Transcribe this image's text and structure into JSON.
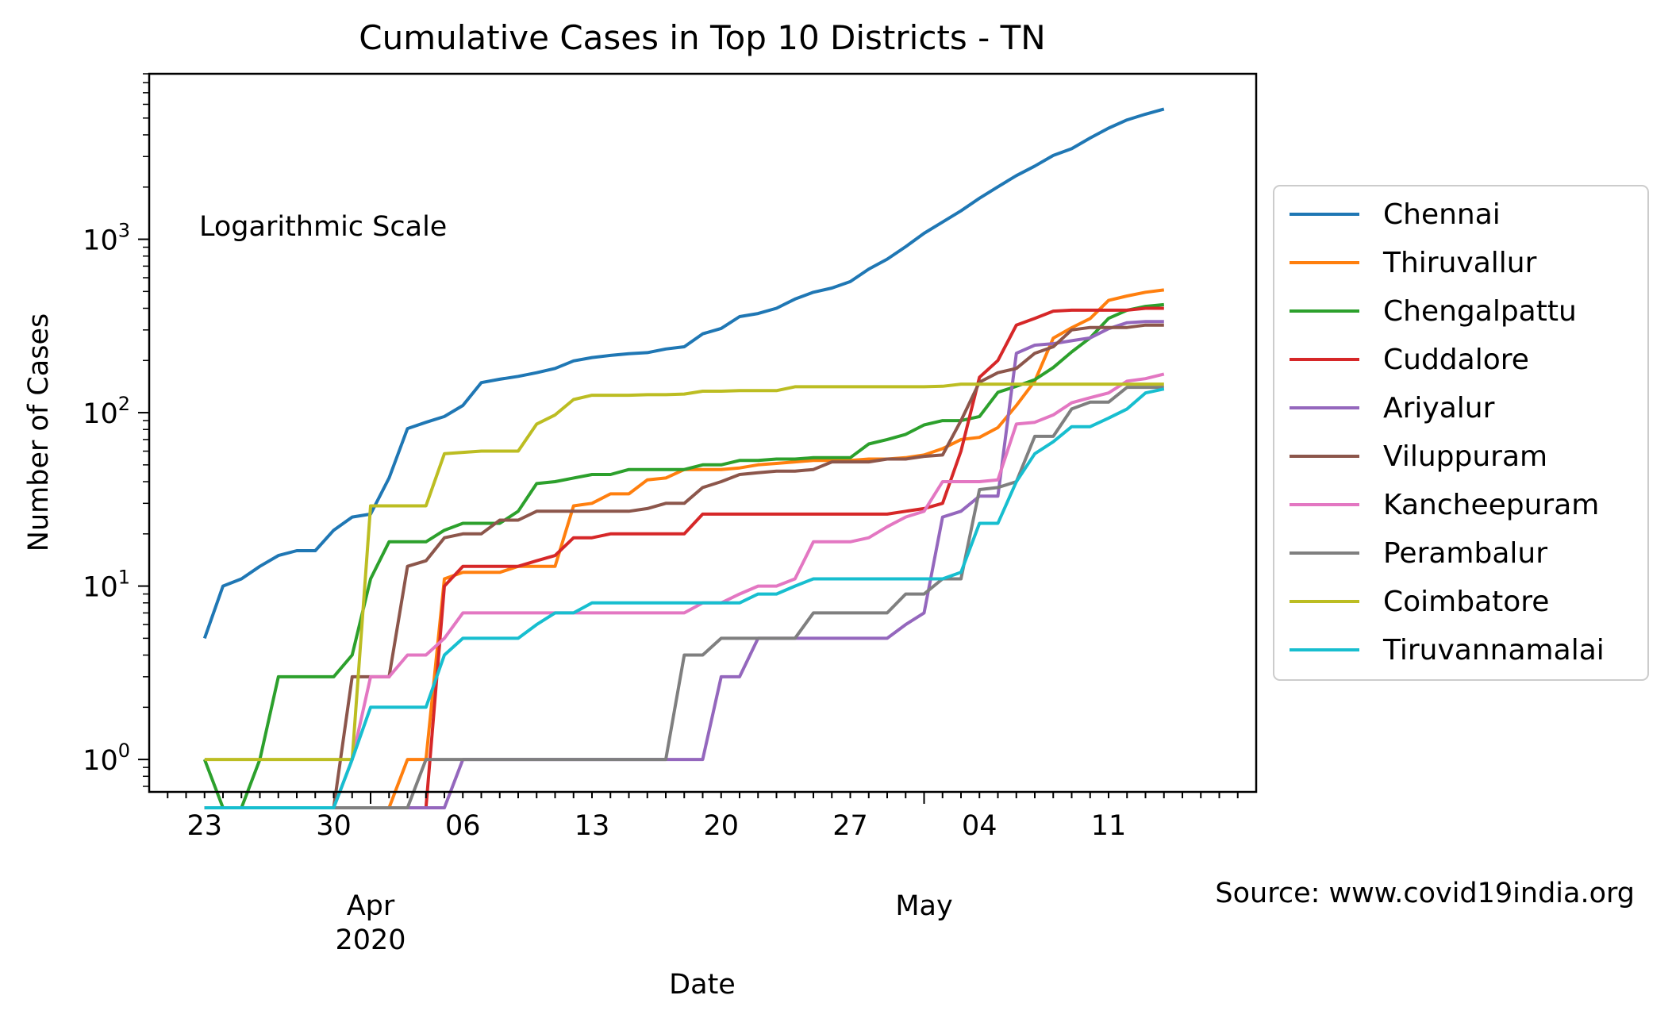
{
  "chart_data": {
    "type": "line",
    "title": "Cumulative Cases in Top 10 Districts - TN",
    "xlabel": "Date",
    "ylabel": "Number of Cases",
    "annotation": "Logarithmic Scale",
    "source": "Source: www.covid19india.org",
    "yscale": "log",
    "ylim": [
      0.65,
      9000
    ],
    "xlim": [
      "2020-03-20",
      "2020-05-19"
    ],
    "grid": false,
    "legend_position": "outside-right",
    "x_tick_labels": [
      {
        "date": "2020-03-23",
        "label": "23"
      },
      {
        "date": "2020-03-30",
        "label": "30"
      },
      {
        "date": "2020-04-06",
        "label": "06"
      },
      {
        "date": "2020-04-13",
        "label": "13"
      },
      {
        "date": "2020-04-20",
        "label": "20"
      },
      {
        "date": "2020-04-27",
        "label": "27"
      },
      {
        "date": "2020-05-04",
        "label": "04"
      },
      {
        "date": "2020-05-11",
        "label": "11"
      }
    ],
    "month_labels": [
      {
        "date": "2020-04-01",
        "label": "Apr",
        "sub": "2020"
      },
      {
        "date": "2020-05-01",
        "label": "May",
        "sub": ""
      }
    ],
    "y_ticks": [
      {
        "value": 1,
        "base": "10",
        "exp": "0"
      },
      {
        "value": 10,
        "base": "10",
        "exp": "1"
      },
      {
        "value": 100,
        "base": "10",
        "exp": "2"
      },
      {
        "value": 1000,
        "base": "10",
        "exp": "3"
      }
    ],
    "x_start": "2020-03-23",
    "series": [
      {
        "name": "Chennai",
        "color": "#1f77b4",
        "values": [
          5,
          10,
          11,
          13,
          15,
          16,
          16,
          21,
          25,
          26,
          42,
          81,
          88,
          95,
          110,
          149,
          156,
          162,
          170,
          180,
          199,
          208,
          214,
          219,
          222,
          233,
          240,
          285,
          306,
          358,
          373,
          400,
          452,
          495,
          523,
          570,
          673,
          768,
          906,
          1082,
          1257,
          1458,
          1724,
          2008,
          2328,
          2644,
          3043,
          3330,
          3839,
          4371,
          4882,
          5262,
          5637
        ]
      },
      {
        "name": "Thiruvallur",
        "color": "#ff7f0e",
        "values": [
          0,
          0,
          0,
          0,
          0,
          0,
          0,
          0,
          0,
          0,
          0,
          1,
          1,
          11,
          12,
          12,
          12,
          13,
          13,
          13,
          29,
          30,
          34,
          34,
          41,
          42,
          47,
          47,
          47,
          48,
          50,
          51,
          52,
          53,
          53,
          53,
          54,
          54,
          55,
          57,
          62,
          70,
          72,
          82,
          110,
          152,
          269,
          309,
          349,
          444,
          471,
          495,
          510
        ]
      },
      {
        "name": "Chengalpattu",
        "color": "#2ca02c",
        "values": [
          1,
          0,
          0,
          1,
          3,
          3,
          3,
          3,
          4,
          11,
          18,
          18,
          18,
          21,
          23,
          23,
          23,
          27,
          39,
          40,
          42,
          44,
          44,
          47,
          47,
          47,
          47,
          50,
          50,
          53,
          53,
          54,
          54,
          55,
          55,
          55,
          66,
          70,
          75,
          85,
          90,
          90,
          95,
          131,
          142,
          155,
          182,
          224,
          270,
          350,
          390,
          410,
          420
        ]
      },
      {
        "name": "Cuddalore",
        "color": "#d62728",
        "values": [
          0,
          0,
          0,
          0,
          0,
          0,
          0,
          0,
          0,
          0,
          0,
          0,
          0,
          10,
          13,
          13,
          13,
          13,
          14,
          15,
          19,
          19,
          20,
          20,
          20,
          20,
          20,
          26,
          26,
          26,
          26,
          26,
          26,
          26,
          26,
          26,
          26,
          26,
          27,
          28,
          30,
          60,
          160,
          200,
          320,
          350,
          385,
          390,
          390,
          390,
          390,
          400,
          400
        ]
      },
      {
        "name": "Ariyalur",
        "color": "#9467bd",
        "values": [
          0,
          0,
          0,
          0,
          0,
          0,
          0,
          0,
          0,
          0,
          0,
          0,
          0,
          0,
          1,
          1,
          1,
          1,
          1,
          1,
          1,
          1,
          1,
          1,
          1,
          1,
          1,
          1,
          3,
          3,
          5,
          5,
          5,
          5,
          5,
          5,
          5,
          5,
          6,
          7,
          25,
          27,
          33,
          33,
          220,
          245,
          250,
          260,
          270,
          305,
          330,
          335,
          335
        ]
      },
      {
        "name": "Viluppuram",
        "color": "#8c564b",
        "values": [
          0,
          0,
          0,
          0,
          0,
          0,
          0,
          0,
          3,
          3,
          3,
          13,
          14,
          19,
          20,
          20,
          24,
          24,
          27,
          27,
          27,
          27,
          27,
          27,
          28,
          30,
          30,
          37,
          40,
          44,
          45,
          46,
          46,
          47,
          52,
          52,
          52,
          54,
          54,
          56,
          57,
          90,
          150,
          170,
          180,
          220,
          240,
          300,
          310,
          310,
          310,
          320,
          320
        ]
      },
      {
        "name": "Kancheepuram",
        "color": "#e377c2",
        "values": [
          0,
          0,
          0,
          0,
          0,
          0,
          0,
          0,
          1,
          3,
          3,
          4,
          4,
          5,
          7,
          7,
          7,
          7,
          7,
          7,
          7,
          7,
          7,
          7,
          7,
          7,
          7,
          8,
          8,
          9,
          10,
          10,
          11,
          18,
          18,
          18,
          19,
          22,
          25,
          27,
          40,
          40,
          40,
          41,
          86,
          88,
          97,
          114,
          122,
          130,
          152,
          157,
          167
        ]
      },
      {
        "name": "Perambalur",
        "color": "#7f7f7f",
        "values": [
          0,
          0,
          0,
          0,
          0,
          0,
          0,
          0,
          0,
          0,
          0,
          0,
          1,
          1,
          1,
          1,
          1,
          1,
          1,
          1,
          1,
          1,
          1,
          1,
          1,
          1,
          4,
          4,
          5,
          5,
          5,
          5,
          5,
          7,
          7,
          7,
          7,
          7,
          9,
          9,
          11,
          11,
          36,
          37,
          40,
          73,
          73,
          105,
          115,
          115,
          140,
          140,
          140
        ]
      },
      {
        "name": "Coimbatore",
        "color": "#bcbd22",
        "values": [
          1,
          1,
          1,
          1,
          1,
          1,
          1,
          1,
          1,
          29,
          29,
          29,
          29,
          58,
          59,
          60,
          60,
          60,
          86,
          97,
          119,
          126,
          126,
          126,
          127,
          127,
          128,
          133,
          133,
          134,
          134,
          134,
          141,
          141,
          141,
          141,
          141,
          141,
          141,
          141,
          142,
          146,
          146,
          146,
          146,
          146,
          146,
          146,
          146,
          146,
          146,
          146,
          146
        ]
      },
      {
        "name": "Tiruvannamalai",
        "color": "#17becf",
        "values": [
          0,
          0,
          0,
          0,
          0,
          0,
          0,
          0,
          1,
          2,
          2,
          2,
          2,
          4,
          5,
          5,
          5,
          5,
          6,
          7,
          7,
          8,
          8,
          8,
          8,
          8,
          8,
          8,
          8,
          8,
          9,
          9,
          10,
          11,
          11,
          11,
          11,
          11,
          11,
          11,
          11,
          12,
          23,
          23,
          40,
          58,
          68,
          83,
          83,
          93,
          105,
          130,
          137
        ]
      }
    ]
  }
}
